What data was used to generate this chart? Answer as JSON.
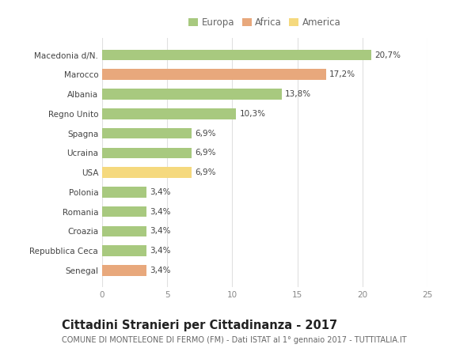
{
  "categories": [
    "Macedonia d/N.",
    "Marocco",
    "Albania",
    "Regno Unito",
    "Spagna",
    "Ucraina",
    "USA",
    "Polonia",
    "Romania",
    "Croazia",
    "Repubblica Ceca",
    "Senegal"
  ],
  "values": [
    20.7,
    17.2,
    13.8,
    10.3,
    6.9,
    6.9,
    6.9,
    3.4,
    3.4,
    3.4,
    3.4,
    3.4
  ],
  "labels": [
    "20,7%",
    "17,2%",
    "13,8%",
    "10,3%",
    "6,9%",
    "6,9%",
    "6,9%",
    "3,4%",
    "3,4%",
    "3,4%",
    "3,4%",
    "3,4%"
  ],
  "colors": [
    "#a8c97f",
    "#e8a87c",
    "#a8c97f",
    "#a8c97f",
    "#a8c97f",
    "#a8c97f",
    "#f5d97e",
    "#a8c97f",
    "#a8c97f",
    "#a8c97f",
    "#a8c97f",
    "#e8a87c"
  ],
  "legend_labels": [
    "Europa",
    "Africa",
    "America"
  ],
  "legend_colors": [
    "#a8c97f",
    "#e8a87c",
    "#f5d97e"
  ],
  "xlim": [
    0,
    25
  ],
  "xticks": [
    0,
    5,
    10,
    15,
    20,
    25
  ],
  "title": "Cittadini Stranieri per Cittadinanza - 2017",
  "subtitle": "COMUNE DI MONTELEONE DI FERMO (FM) - Dati ISTAT al 1° gennaio 2017 - TUTTITALIA.IT",
  "background_color": "#ffffff",
  "grid_color": "#e0e0e0",
  "bar_height": 0.55,
  "label_fontsize": 7.5,
  "ytick_fontsize": 7.5,
  "xtick_fontsize": 7.5,
  "title_fontsize": 10.5,
  "subtitle_fontsize": 7.0,
  "legend_fontsize": 8.5
}
